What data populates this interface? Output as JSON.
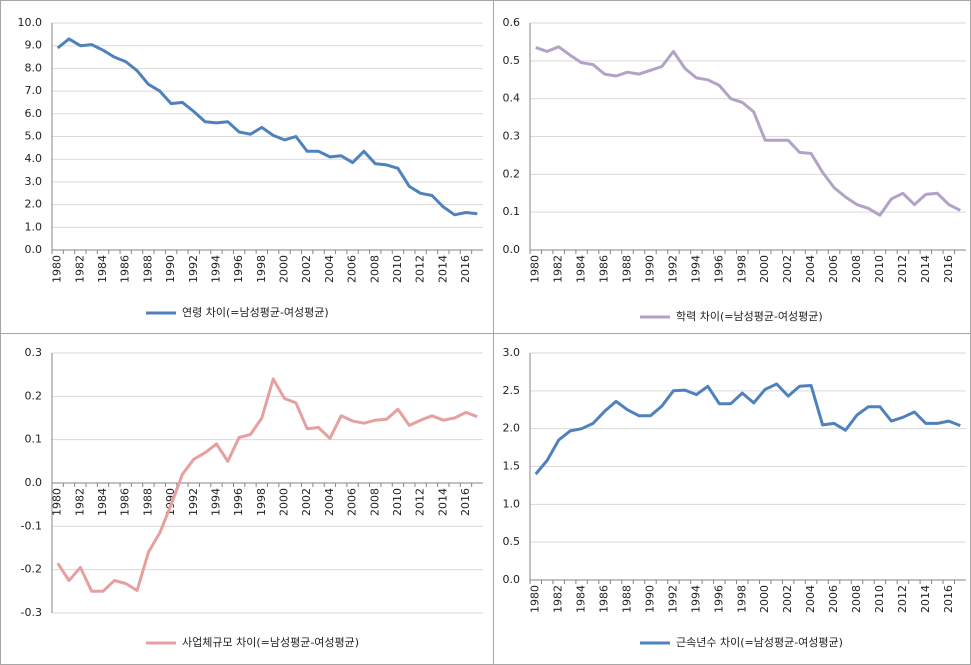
{
  "chart_data": [
    {
      "type": "line",
      "categories": [
        "1980",
        null,
        "1982",
        null,
        "1984",
        null,
        "1986",
        null,
        "1988",
        null,
        "1990",
        null,
        "1992",
        null,
        "1994",
        null,
        "1996",
        null,
        "1998",
        null,
        "2000",
        null,
        "2002",
        null,
        "2004",
        null,
        "2006",
        null,
        "2008",
        null,
        "2010",
        null,
        "2012",
        null,
        "2014",
        null,
        "2016",
        null
      ],
      "series": [
        {
          "name": "연령 차이(=남성평균-여성평균)",
          "color": "#4f81bd",
          "values": [
            8.9,
            9.3,
            9.0,
            9.05,
            8.8,
            8.5,
            8.3,
            7.9,
            7.3,
            7.0,
            6.45,
            6.5,
            6.1,
            5.65,
            5.6,
            5.65,
            5.2,
            5.1,
            5.4,
            5.05,
            4.85,
            5.0,
            4.35,
            4.35,
            4.1,
            4.15,
            3.85,
            4.35,
            3.8,
            3.75,
            3.6,
            2.8,
            2.5,
            2.4,
            1.9,
            1.55,
            1.65,
            1.6
          ]
        }
      ],
      "ylim": [
        0,
        10
      ],
      "yticks": [
        {
          "value": 0,
          "label": "0.0"
        },
        {
          "value": 1,
          "label": "1.0"
        },
        {
          "value": 2,
          "label": "2.0"
        },
        {
          "value": 3,
          "label": "3.0"
        },
        {
          "value": 4,
          "label": "4.0"
        },
        {
          "value": 5,
          "label": "5.0"
        },
        {
          "value": 6,
          "label": "6.0"
        },
        {
          "value": 7,
          "label": "7.0"
        },
        {
          "value": 8,
          "label": "8.0"
        },
        {
          "value": 9,
          "label": "9.0"
        },
        {
          "value": 10,
          "label": "10.0"
        }
      ],
      "grid": true
    },
    {
      "type": "line",
      "categories": [
        "1980",
        null,
        "1982",
        null,
        "1984",
        null,
        "1986",
        null,
        "1988",
        null,
        "1990",
        null,
        "1992",
        null,
        "1994",
        null,
        "1996",
        null,
        "1998",
        null,
        "2000",
        null,
        "2002",
        null,
        "2004",
        null,
        "2006",
        null,
        "2008",
        null,
        "2010",
        null,
        "2012",
        null,
        "2014",
        null,
        "2016",
        null
      ],
      "series": [
        {
          "name": "학력 차이(=남성평균-여성평균)",
          "color": "#b3a2c7",
          "values": [
            0.535,
            0.525,
            0.537,
            0.515,
            0.495,
            0.49,
            0.465,
            0.46,
            0.47,
            0.465,
            0.475,
            0.485,
            0.525,
            0.48,
            0.455,
            0.45,
            0.435,
            0.4,
            0.39,
            0.365,
            0.29,
            0.29,
            0.29,
            0.258,
            0.255,
            0.205,
            0.165,
            0.14,
            0.12,
            0.11,
            0.092,
            0.135,
            0.15,
            0.12,
            0.147,
            0.15,
            0.12,
            0.105
          ]
        }
      ],
      "ylim": [
        0,
        0.6
      ],
      "yticks": [
        {
          "value": 0,
          "label": "0.0"
        },
        0.1,
        0.2,
        0.3,
        0.4,
        0.5,
        0.6
      ],
      "grid": true
    },
    {
      "type": "line",
      "categories": [
        "1980",
        null,
        "1982",
        null,
        "1984",
        null,
        "1986",
        null,
        "1988",
        null,
        "1990",
        null,
        "1992",
        null,
        "1994",
        null,
        "1996",
        null,
        "1998",
        null,
        "2000",
        null,
        "2002",
        null,
        "2004",
        null,
        "2006",
        null,
        "2008",
        null,
        "2010",
        null,
        "2012",
        null,
        "2014",
        null,
        "2016",
        null
      ],
      "series": [
        {
          "name": "사업체규모 차이(=남성평균-여성평균)",
          "color": "#e6a0a0",
          "values": [
            -0.185,
            -0.225,
            -0.195,
            -0.25,
            -0.25,
            -0.225,
            -0.232,
            -0.248,
            -0.16,
            -0.115,
            -0.05,
            0.02,
            0.055,
            0.07,
            0.09,
            0.05,
            0.105,
            0.112,
            0.15,
            0.24,
            0.195,
            0.185,
            0.125,
            0.128,
            0.103,
            0.155,
            0.143,
            0.138,
            0.145,
            0.147,
            0.17,
            0.133,
            0.145,
            0.155,
            0.145,
            0.15,
            0.163,
            0.153
          ]
        }
      ],
      "ylim": [
        -0.3,
        0.3
      ],
      "yticks": [
        -0.3,
        -0.2,
        -0.1,
        {
          "value": 0,
          "label": "0.0"
        },
        0.1,
        0.2,
        0.3
      ],
      "grid": true
    },
    {
      "type": "line",
      "categories": [
        "1980",
        null,
        "1982",
        null,
        "1984",
        null,
        "1986",
        null,
        "1988",
        null,
        "1990",
        null,
        "1992",
        null,
        "1994",
        null,
        "1996",
        null,
        "1998",
        null,
        "2000",
        null,
        "2002",
        null,
        "2004",
        null,
        "2006",
        null,
        "2008",
        null,
        "2010",
        null,
        "2012",
        null,
        "2014",
        null,
        "2016",
        null
      ],
      "series": [
        {
          "name": "근속년수 차이(=남성평균-여성평균)",
          "color": "#4f81bd",
          "values": [
            1.4,
            1.58,
            1.85,
            1.97,
            2.0,
            2.07,
            2.23,
            2.36,
            2.25,
            2.17,
            2.17,
            2.3,
            2.5,
            2.51,
            2.45,
            2.56,
            2.33,
            2.33,
            2.47,
            2.34,
            2.52,
            2.59,
            2.43,
            2.56,
            2.57,
            2.05,
            2.07,
            1.98,
            2.18,
            2.29,
            2.29,
            2.1,
            2.15,
            2.22,
            2.07,
            2.07,
            2.1,
            2.04
          ]
        }
      ],
      "ylim": [
        0,
        3
      ],
      "yticks": [
        {
          "value": 0,
          "label": "0.0"
        },
        {
          "value": 0.5,
          "label": "0.5"
        },
        {
          "value": 1,
          "label": "1.0"
        },
        {
          "value": 1.5,
          "label": "1.5"
        },
        {
          "value": 2,
          "label": "2.0"
        },
        {
          "value": 2.5,
          "label": "2.5"
        },
        {
          "value": 3,
          "label": "3.0"
        }
      ],
      "grid": true
    }
  ]
}
